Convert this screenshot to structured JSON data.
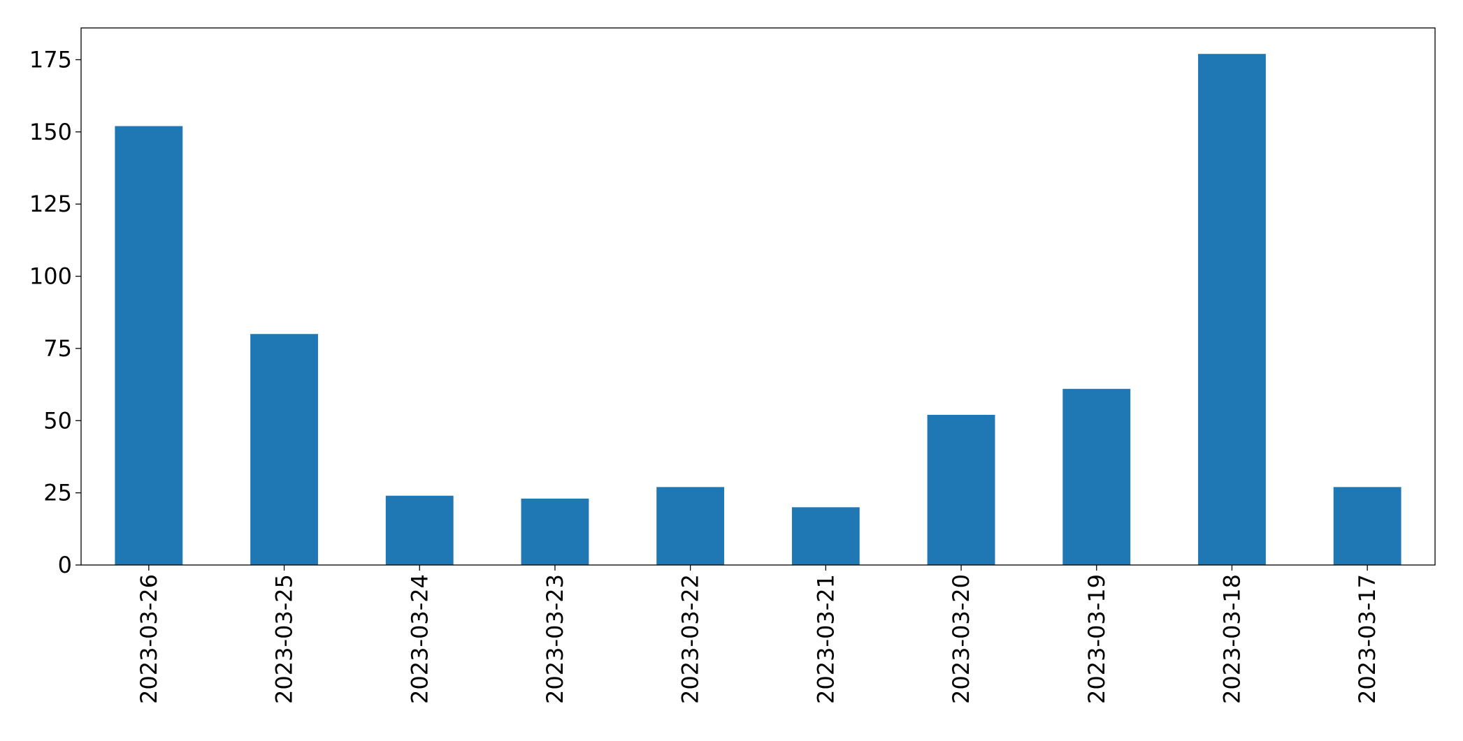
{
  "chart_data": {
    "type": "bar",
    "categories": [
      "2023-03-26",
      "2023-03-25",
      "2023-03-24",
      "2023-03-23",
      "2023-03-22",
      "2023-03-21",
      "2023-03-20",
      "2023-03-19",
      "2023-03-18",
      "2023-03-17"
    ],
    "values": [
      152,
      80,
      24,
      23,
      27,
      20,
      52,
      61,
      177,
      27
    ],
    "color": "#1f77b4",
    "ylim": [
      0,
      186
    ],
    "yticks": [
      0,
      25,
      50,
      75,
      100,
      125,
      150,
      175
    ],
    "grid": false
  }
}
